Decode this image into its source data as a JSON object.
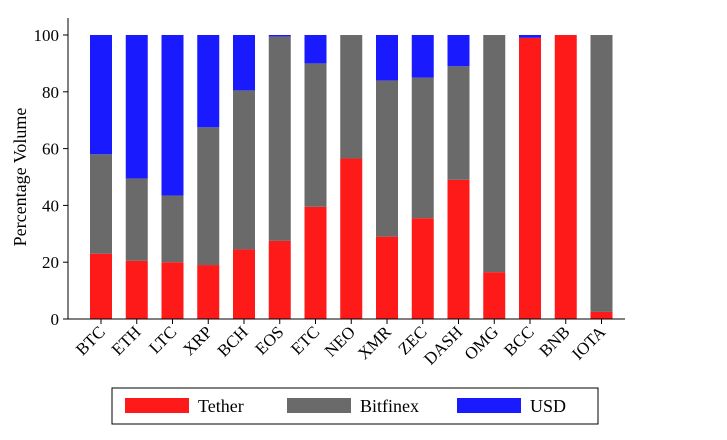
{
  "chart_data": {
    "type": "bar",
    "stacked": true,
    "title": "",
    "xlabel": "",
    "ylabel": "Percentage Volume",
    "ylim": [
      0,
      100
    ],
    "yticks": [
      0,
      20,
      40,
      60,
      80,
      100
    ],
    "grid": false,
    "legend_position": "bottom",
    "categories": [
      "BTC",
      "ETH",
      "LTC",
      "XRP",
      "BCH",
      "EOS",
      "ETC",
      "NEO",
      "XMR",
      "ZEC",
      "DASH",
      "OMG",
      "BCC",
      "BNB",
      "IOTA"
    ],
    "series": [
      {
        "name": "Tether",
        "color": "#ff1a1a",
        "values": [
          23,
          20.5,
          20,
          19,
          24.5,
          27.5,
          39.5,
          56.5,
          29,
          35.5,
          49,
          16.5,
          99,
          100,
          2.5
        ]
      },
      {
        "name": "Bitfinex",
        "color": "#6a6a6a",
        "values": [
          35,
          29,
          23.5,
          48.5,
          56,
          72,
          50.5,
          43.5,
          55,
          49.5,
          40,
          83.5,
          0,
          0,
          97.5
        ]
      },
      {
        "name": "USD",
        "color": "#1a1aff",
        "values": [
          42,
          50.5,
          56.5,
          32.5,
          19.5,
          0.5,
          10,
          0,
          16,
          15,
          11,
          0,
          1,
          0,
          0
        ]
      }
    ]
  }
}
